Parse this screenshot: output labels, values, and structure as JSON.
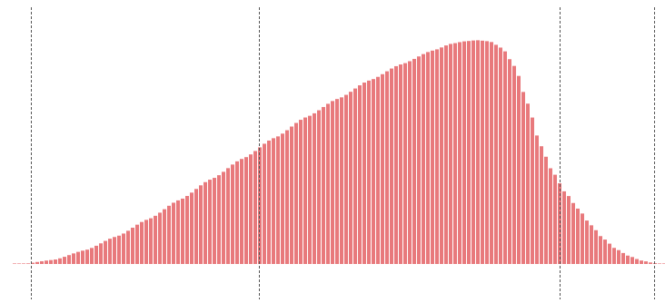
{
  "chart_data": {
    "type": "bar",
    "title": "",
    "xlabel": "",
    "ylabel": "",
    "grid": false,
    "legend": "none",
    "bar_color": "#e8797c",
    "bar_gap_color": "#ffffff",
    "reference_line_color": "#555555",
    "xlim": [
      0,
      1
    ],
    "ylim": [
      0,
      1
    ],
    "reference_lines_x": [
      0.015,
      0.375,
      0.85,
      1.0
    ],
    "curve": {
      "x": [
        0.0,
        0.05,
        0.1,
        0.15,
        0.2,
        0.25,
        0.3,
        0.35,
        0.4,
        0.45,
        0.5,
        0.55,
        0.6,
        0.65,
        0.68,
        0.7,
        0.72,
        0.74,
        0.76,
        0.78,
        0.8,
        0.82,
        0.84,
        0.86,
        0.88,
        0.9,
        0.92,
        0.94,
        0.96,
        0.98,
        1.0,
        1.02
      ],
      "y": [
        0.0,
        0.018,
        0.06,
        0.12,
        0.195,
        0.28,
        0.37,
        0.46,
        0.55,
        0.64,
        0.72,
        0.8,
        0.87,
        0.93,
        0.96,
        0.97,
        0.975,
        0.97,
        0.94,
        0.86,
        0.7,
        0.52,
        0.4,
        0.31,
        0.24,
        0.17,
        0.11,
        0.065,
        0.035,
        0.015,
        0.004,
        0.0
      ]
    }
  }
}
